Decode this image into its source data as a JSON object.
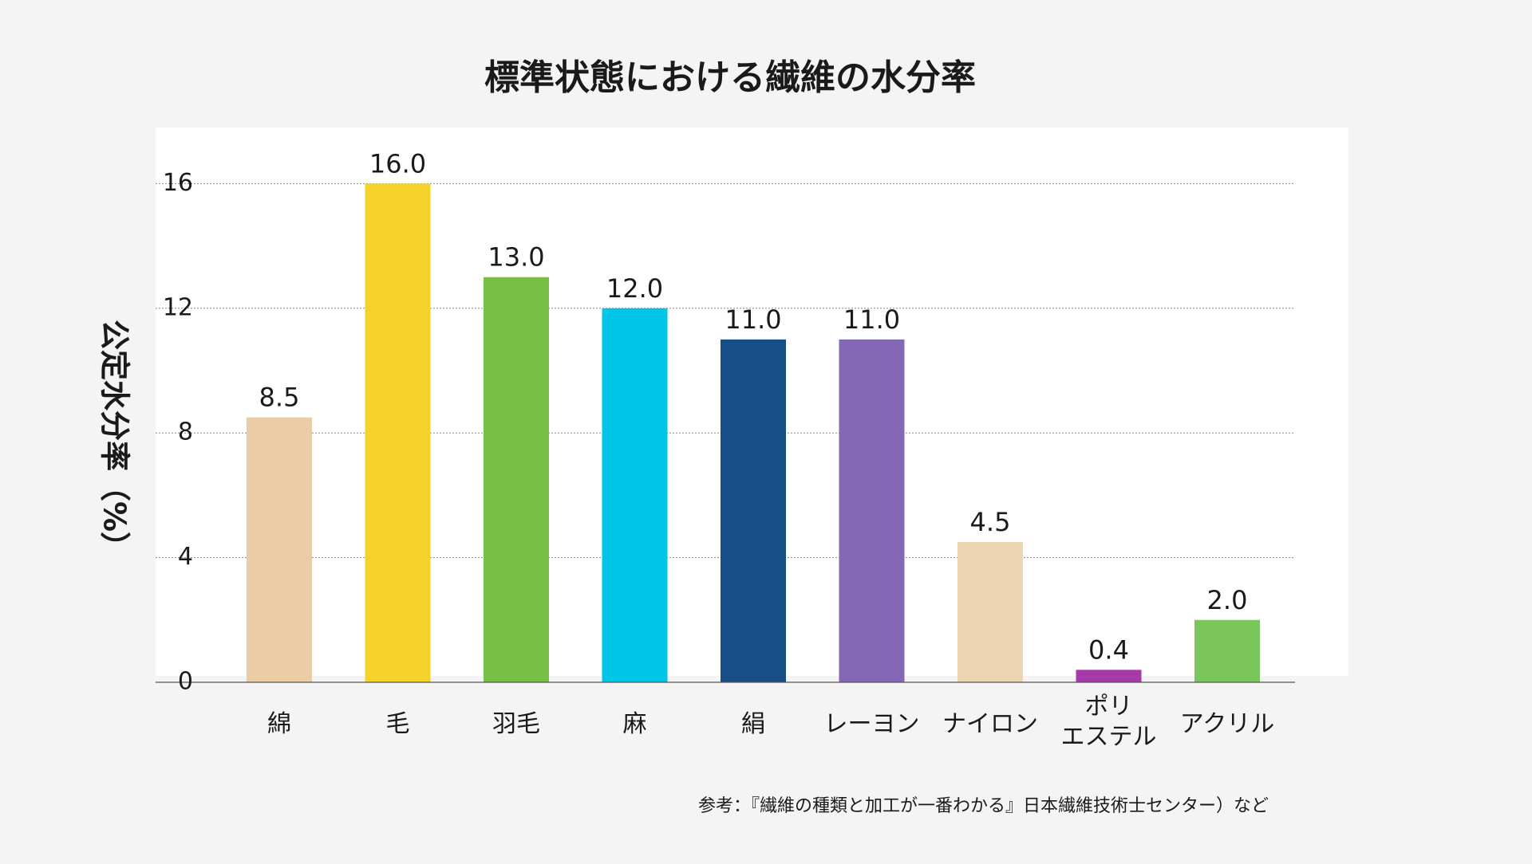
{
  "chart_data": {
    "type": "bar",
    "title": "標準状態における繊維の水分率",
    "ylabel": "公定水分率（%）",
    "xlabel": "",
    "ylim": [
      0,
      17.8
    ],
    "yticks": [
      0,
      4,
      8,
      12,
      16
    ],
    "grid": true,
    "categories": [
      "綿",
      "毛",
      "羽毛",
      "麻",
      "絹",
      "レーヨン",
      "ナイロン",
      "ポリ\nエステル",
      "アクリル"
    ],
    "values": [
      8.5,
      16.0,
      13.0,
      12.0,
      11.0,
      11.0,
      4.5,
      0.4,
      2.0
    ],
    "value_labels": [
      "8.5",
      "16.0",
      "13.0",
      "12.0",
      "11.0",
      "11.0",
      "4.5",
      "0.4",
      "2.0"
    ],
    "colors": [
      "#EBCDA5",
      "#F5D22A",
      "#77C046",
      "#00C5E6",
      "#174E85",
      "#8467B5",
      "#EDD4B2",
      "#A739AB",
      "#7AC65A"
    ],
    "source_note": "参考：『繊維の種類と加工が一番わかる』日本繊維技術士センター）など"
  }
}
